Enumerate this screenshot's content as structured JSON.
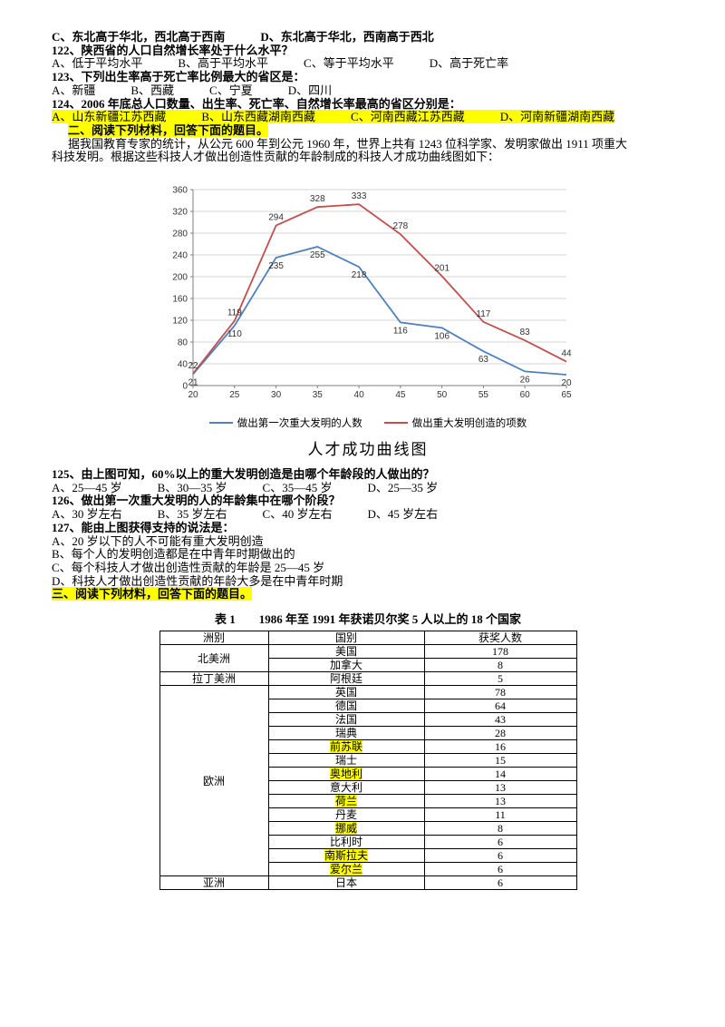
{
  "page": {
    "highlight_color": "#ffff00"
  },
  "top_lines": [
    {
      "text": "C、东北高于华北，西北高于西南　　　D、东北高于华北，西南高于西北",
      "bold": true
    },
    {
      "text": "122、陕西省的人口自然增长率处于什么水平？",
      "bold": true
    },
    {
      "text": "A、低于平均水平　　　B、高于平均水平　　　C、等于平均水平　　　D、高于死亡率"
    },
    {
      "text": "123、下列出生率高于死亡率比例最大的省区是：",
      "bold": true
    },
    {
      "text": "A、新疆　　　B、西藏　　　C、宁夏　　　D、四川"
    },
    {
      "text": "124、2006 年底总人口数量、出生率、死亡率、自然增长率最高的省区分别是：",
      "bold": true
    },
    {
      "text": "A、山东新疆江苏西藏　　　B、山东西藏湖南西藏　　　C、河南西藏江苏西藏　　　D、河南新疆湖南西藏",
      "mark": true
    },
    {
      "text": "二、阅读下列材料，回答下面的题目。",
      "bold": true,
      "mark": true,
      "indent": true
    },
    {
      "text": "据我国教育专家的统计，从公元 600 年到公元 1960 年，世界上共有 1243 位科学家、发明家做出 1911 项重大",
      "indent": true
    },
    {
      "text": "科技发明。根据这些科技人才做出创造性贡献的年龄制成的科技人才成功曲线图如下："
    }
  ],
  "chart_data": {
    "type": "line",
    "title": "人才成功曲线图",
    "x": [
      20,
      25,
      30,
      35,
      40,
      45,
      50,
      55,
      60,
      65
    ],
    "ylim": [
      0,
      360
    ],
    "ytick_step": 40,
    "grid": true,
    "legend_position": "bottom",
    "series": [
      {
        "name": "做出第一次重大发明的人数",
        "color": "#4f81bd",
        "label_side": "below",
        "values": [
          21,
          110,
          235,
          255,
          218,
          116,
          106,
          63,
          26,
          20
        ]
      },
      {
        "name": "做出重大发明创造的项数",
        "color": "#c0504d",
        "label_side": "above",
        "values": [
          22,
          119,
          294,
          328,
          333,
          278,
          201,
          117,
          83,
          44
        ]
      }
    ]
  },
  "mid_lines": [
    {
      "text": "125、由上图可知，60%以上的重大发明创造是由哪个年龄段的人做出的？",
      "bold": true
    },
    {
      "text": "A、25—45 岁　　　B、30—35 岁　　　C、35—45 岁　　　D、25—35 岁"
    },
    {
      "text": "126、做出第一次重大发明的人的年龄集中在哪个阶段？",
      "bold": true
    },
    {
      "text": "A、30 岁左右　　　B、35 岁左右　　　C、40 岁左右　　　D、45 岁左右"
    },
    {
      "text": "127、能由上图获得支持的说法是：",
      "bold": true
    },
    {
      "text": "A、20 岁以下的人不可能有重大发明创造"
    },
    {
      "text": "B、每个人的发明创造都是在中青年时期做出的"
    },
    {
      "text": "C、每个科技人才做出创造性贡献的年龄是 25—45 岁"
    },
    {
      "text": "D、科技人才做出创造性贡献的年龄大多是在中青年时期"
    },
    {
      "text": "三、阅读下列材料，回答下面的题目。",
      "bold": true,
      "mark": true
    }
  ],
  "table": {
    "caption": "表 1　　1986 年至 1991 年获诺贝尔奖 5 人以上的 18 个国家",
    "headers": [
      "洲别",
      "国别",
      "获奖人数"
    ],
    "groups": [
      {
        "continent": "北美洲",
        "rows": [
          {
            "country": "美国",
            "count": "178"
          },
          {
            "country": "加拿大",
            "count": "8"
          }
        ]
      },
      {
        "continent": "拉丁美洲",
        "rows": [
          {
            "country": "阿根廷",
            "count": "5"
          }
        ]
      },
      {
        "continent": "欧洲",
        "rows": [
          {
            "country": "英国",
            "count": "78"
          },
          {
            "country": "德国",
            "count": "64"
          },
          {
            "country": "法国",
            "count": "43"
          },
          {
            "country": "瑞典",
            "count": "28"
          },
          {
            "country": "前苏联",
            "count": "16",
            "mark": true
          },
          {
            "country": "瑞士",
            "count": "15"
          },
          {
            "country": "奥地利",
            "count": "14",
            "mark": true
          },
          {
            "country": "意大利",
            "count": "13"
          },
          {
            "country": "荷兰",
            "count": "13",
            "mark": true
          },
          {
            "country": "丹麦",
            "count": "11"
          },
          {
            "country": "挪威",
            "count": "8",
            "mark": true
          },
          {
            "country": "比利时",
            "count": "6"
          },
          {
            "country": "南斯拉夫",
            "count": "6",
            "mark": true
          },
          {
            "country": "爱尔兰",
            "count": "6",
            "mark": true
          }
        ]
      },
      {
        "continent": "亚洲",
        "rows": [
          {
            "country": "日本",
            "count": "6"
          }
        ]
      }
    ]
  }
}
